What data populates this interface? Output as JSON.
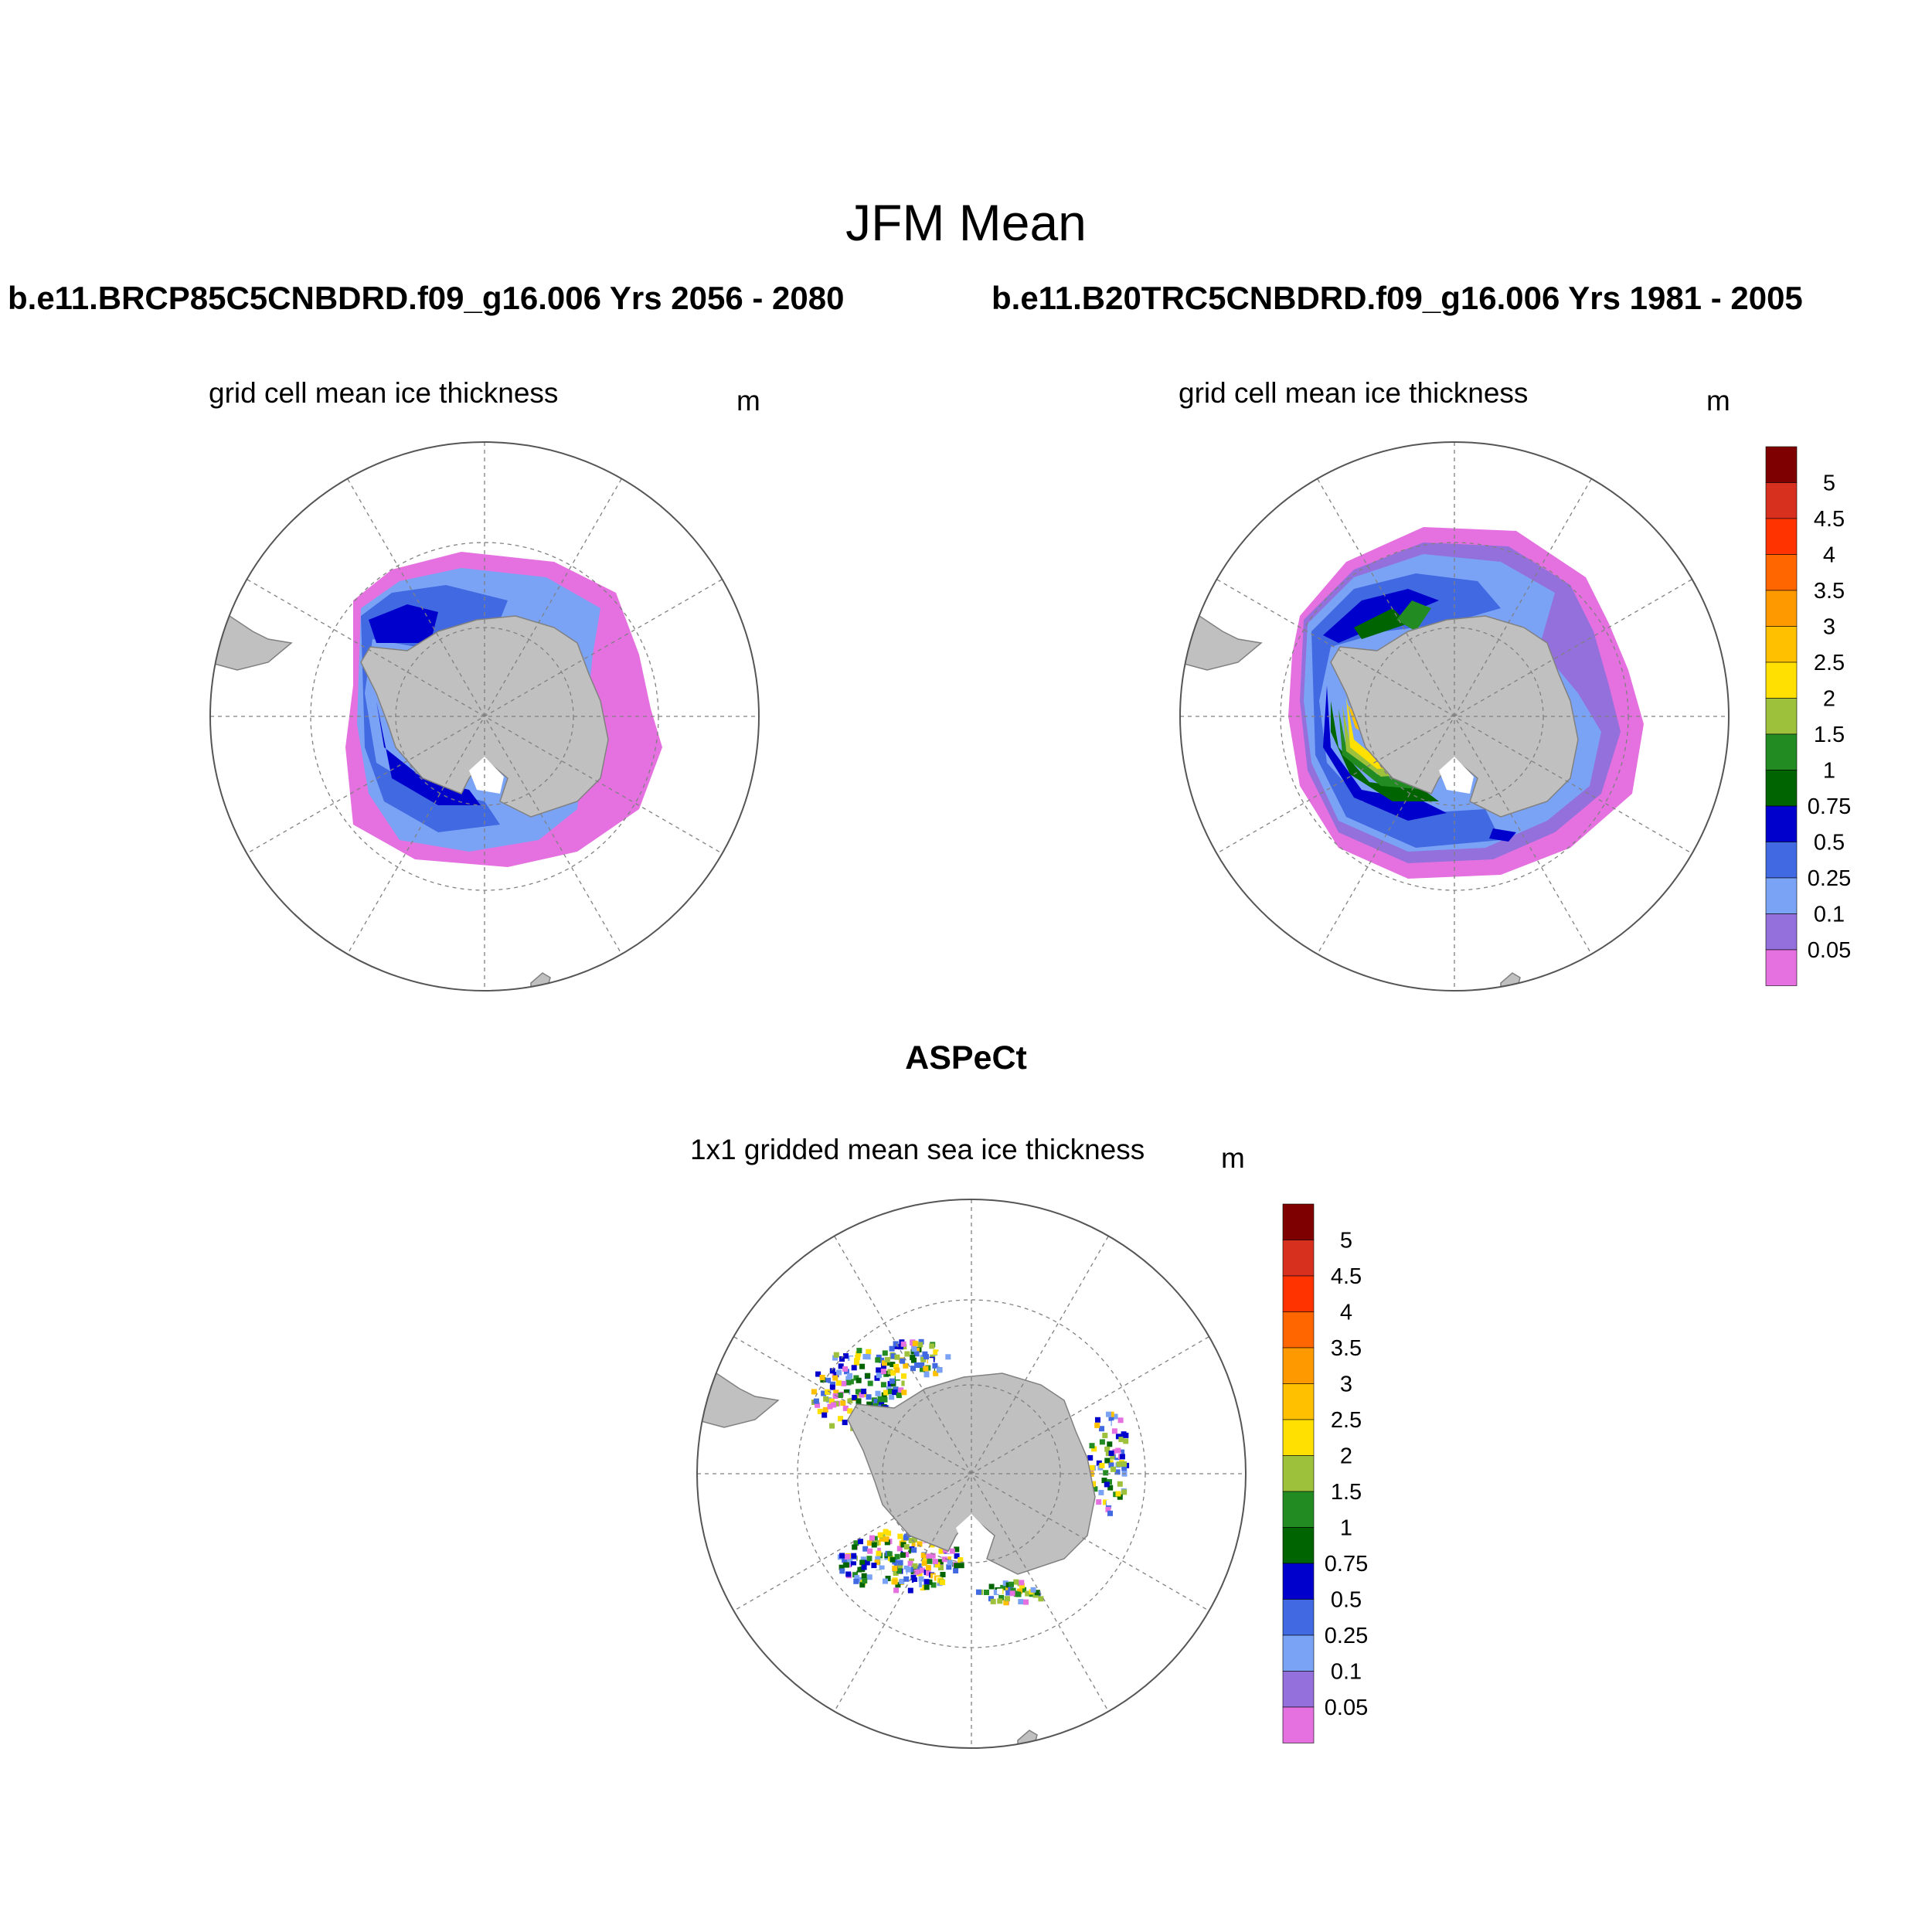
{
  "figure": {
    "title": "JFM Mean",
    "case_left": "b.e11.BRCP85C5CNBDRD.f09_g16.006  Yrs 2056 - 2080",
    "case_right": "b.e11.B20TRC5CNBDRD.f09_g16.006  Yrs 1981 - 2005",
    "bottom_title": "ASPeCt"
  },
  "panels": {
    "top_left": {
      "title": "grid cell mean ice thickness",
      "unit": "m"
    },
    "top_right": {
      "title": "grid cell mean ice thickness",
      "unit": "m"
    },
    "bottom": {
      "title": "1x1 gridded mean sea ice thickness",
      "unit": "m"
    }
  },
  "colorbar": {
    "labels": [
      "5",
      "4.5",
      "4",
      "3.5",
      "3",
      "2.5",
      "2",
      "1.5",
      "1",
      "0.75",
      "0.5",
      "0.25",
      "0.1",
      "0.05"
    ],
    "colors_top_to_bottom": [
      "#7f0000",
      "#d7301f",
      "#ff3300",
      "#ff6600",
      "#ff9900",
      "#ffc000",
      "#ffe000",
      "#9dc13a",
      "#228b22",
      "#006400",
      "#0000cd",
      "#4169e1",
      "#7ba3f5",
      "#9370db",
      "#e570e0"
    ]
  },
  "map_colors": {
    "land": "#c0c0c0",
    "land_outline": "#808080",
    "grid": "#808080"
  }
}
